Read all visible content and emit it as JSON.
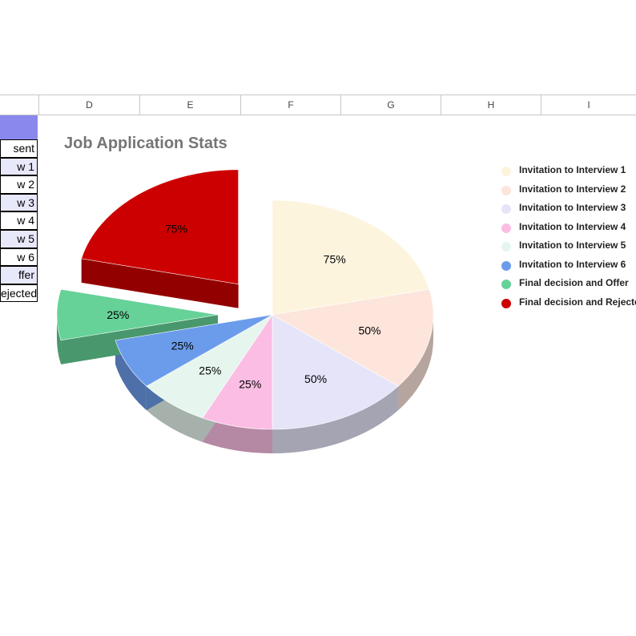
{
  "spreadsheet": {
    "columns": [
      "D",
      "E",
      "F",
      "G",
      "H",
      "I"
    ],
    "cells": [
      {
        "text": "",
        "style": "header-cell"
      },
      {
        "text": "sent",
        "style": "white"
      },
      {
        "text": "w 1",
        "style": "lav"
      },
      {
        "text": "w 2",
        "style": "white"
      },
      {
        "text": "w 3",
        "style": "lav"
      },
      {
        "text": "w 4",
        "style": "white"
      },
      {
        "text": "w 5",
        "style": "lav"
      },
      {
        "text": "w 6",
        "style": "white"
      },
      {
        "text": "ffer",
        "style": "lav"
      },
      {
        "text": "ejected",
        "style": "white"
      }
    ]
  },
  "chart_data": {
    "type": "pie",
    "title": "Job Application Stats",
    "three_d": true,
    "legend_position": "right",
    "slices": [
      {
        "name": "Invitation to Interview 1",
        "value": 75,
        "label": "75%",
        "color": "#fdf4de"
      },
      {
        "name": "Invitation to Interview 2",
        "value": 50,
        "label": "50%",
        "color": "#fde5dc"
      },
      {
        "name": "Invitation to Interview 3",
        "value": 50,
        "label": "50%",
        "color": "#e5e4f9"
      },
      {
        "name": "Invitation to Interview 4",
        "value": 25,
        "label": "25%",
        "color": "#fbbde3"
      },
      {
        "name": "Invitation to Interview 5",
        "value": 25,
        "label": "25%",
        "color": "#e6f6ee"
      },
      {
        "name": "Invitation to Interview 6",
        "value": 25,
        "label": "25%",
        "color": "#6b9ceb"
      },
      {
        "name": "Final decision and Offer",
        "value": 25,
        "label": "25%",
        "color": "#66d298",
        "exploded": true
      },
      {
        "name": "Final decision and Rejected",
        "value": 75,
        "label": "75%",
        "color": "#cc0000",
        "exploded": true
      }
    ],
    "legend_labels": [
      "Invitation to Interview 1",
      "Invitation to Interview 2",
      "Invitation to Interview 3",
      "Invitation to Interview 4",
      "Invitation to Interview 5",
      "Invitation to Interview 6",
      "Final decision and Offer",
      "Final decision and Rejected"
    ]
  }
}
